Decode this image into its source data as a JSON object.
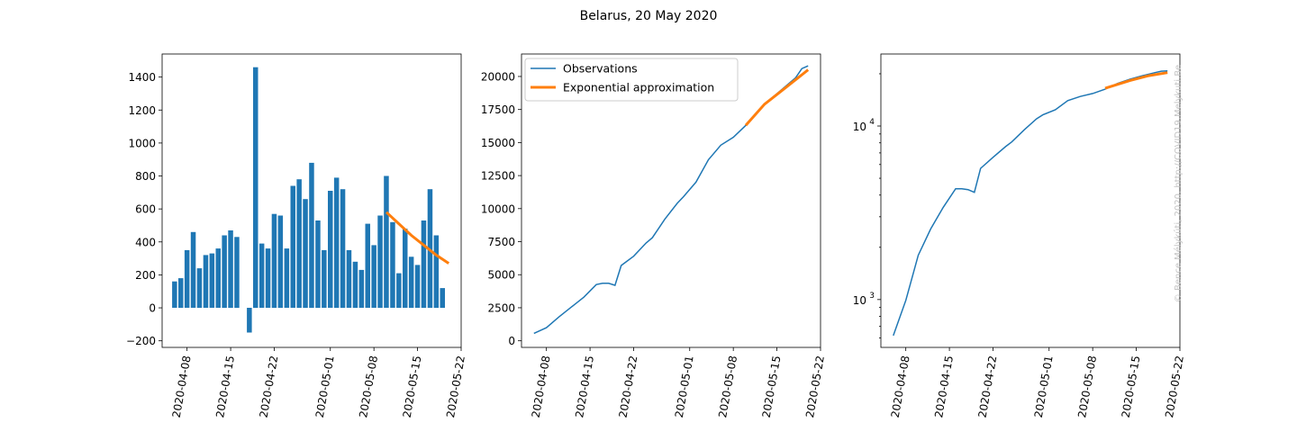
{
  "title": "Belarus, 20 May 2020",
  "watermark": "© Bence Mélykúti, 2020. http://COVID19.Melykuti.Be",
  "legend": {
    "observations": "Observations",
    "fit": "Exponential approximation"
  },
  "colors": {
    "observations": "#1f77b4",
    "fit": "#ff7f0e"
  },
  "chart_data": [
    {
      "type": "bar",
      "x_start": "2020-04-06",
      "x_end": "2020-05-20",
      "xlim": [
        "2020-04-04",
        "2020-05-22"
      ],
      "xticks": [
        "2020-04-08",
        "2020-04-15",
        "2020-04-22",
        "2020-05-01",
        "2020-05-08",
        "2020-05-15",
        "2020-05-22"
      ],
      "ylim": [
        -240,
        1540
      ],
      "yticks": [
        -200,
        0,
        200,
        400,
        600,
        800,
        1000,
        1200,
        1400
      ],
      "values": [
        160,
        180,
        350,
        460,
        240,
        320,
        330,
        360,
        440,
        470,
        430,
        0,
        -150,
        1460,
        390,
        360,
        570,
        560,
        360,
        740,
        780,
        660,
        880,
        530,
        350,
        710,
        790,
        720,
        350,
        280,
        230,
        510,
        380,
        560,
        800,
        520,
        210,
        480,
        310,
        260,
        530,
        720,
        440,
        120
      ],
      "fit": {
        "x": [
          "2020-05-10",
          "2020-05-12",
          "2020-05-14",
          "2020-05-16",
          "2020-05-18",
          "2020-05-20"
        ],
        "values": [
          580,
          510,
          440,
          380,
          320,
          270
        ]
      }
    },
    {
      "type": "line",
      "series_name": "Observations",
      "x": [
        "2020-04-06",
        "2020-04-08",
        "2020-04-10",
        "2020-04-12",
        "2020-04-14",
        "2020-04-16",
        "2020-04-17",
        "2020-04-18",
        "2020-04-19",
        "2020-04-20",
        "2020-04-22",
        "2020-04-24",
        "2020-04-25",
        "2020-04-27",
        "2020-04-29",
        "2020-04-30",
        "2020-05-02",
        "2020-05-04",
        "2020-05-06",
        "2020-05-08",
        "2020-05-10",
        "2020-05-12",
        "2020-05-14",
        "2020-05-16",
        "2020-05-18",
        "2020-05-19",
        "2020-05-20"
      ],
      "y": [
        560,
        990,
        1800,
        2550,
        3300,
        4250,
        4350,
        4350,
        4200,
        5700,
        6400,
        7400,
        7800,
        9200,
        10400,
        10900,
        12000,
        13700,
        14800,
        15400,
        16300,
        17400,
        18300,
        19100,
        19900,
        20600,
        20800
      ],
      "xlim": [
        "2020-04-04",
        "2020-05-22"
      ],
      "xticks": [
        "2020-04-08",
        "2020-04-15",
        "2020-04-22",
        "2020-05-01",
        "2020-05-08",
        "2020-05-15",
        "2020-05-22"
      ],
      "ylim": [
        -500,
        21700
      ],
      "yticks": [
        0,
        2500,
        5000,
        7500,
        10000,
        12500,
        15000,
        17500,
        20000
      ],
      "fit": {
        "x": [
          "2020-05-10",
          "2020-05-13",
          "2020-05-16",
          "2020-05-20"
        ],
        "y": [
          16300,
          17900,
          19000,
          20500
        ]
      },
      "legend_position": "upper-left"
    },
    {
      "type": "line",
      "yscale": "log",
      "x": [
        "2020-04-06",
        "2020-04-08",
        "2020-04-10",
        "2020-04-12",
        "2020-04-14",
        "2020-04-16",
        "2020-04-17",
        "2020-04-18",
        "2020-04-19",
        "2020-04-20",
        "2020-04-22",
        "2020-04-24",
        "2020-04-25",
        "2020-04-27",
        "2020-04-29",
        "2020-04-30",
        "2020-05-02",
        "2020-05-04",
        "2020-05-06",
        "2020-05-08",
        "2020-05-10",
        "2020-05-12",
        "2020-05-14",
        "2020-05-16",
        "2020-05-18",
        "2020-05-19",
        "2020-05-20"
      ],
      "y": [
        620,
        990,
        1800,
        2550,
        3400,
        4350,
        4350,
        4300,
        4150,
        5700,
        6600,
        7600,
        8100,
        9500,
        11000,
        11600,
        12400,
        14000,
        14800,
        15400,
        16300,
        17600,
        18600,
        19500,
        20300,
        20700,
        20800
      ],
      "xlim": [
        "2020-04-04",
        "2020-05-22"
      ],
      "xticks": [
        "2020-04-08",
        "2020-04-15",
        "2020-04-22",
        "2020-05-01",
        "2020-05-08",
        "2020-05-15",
        "2020-05-22"
      ],
      "ylim": [
        530,
        26000
      ],
      "yticks_major": [
        {
          "value": 1000,
          "label": "10",
          "exp": "3"
        },
        {
          "value": 10000,
          "label": "10",
          "exp": "4"
        }
      ],
      "fit": {
        "x": [
          "2020-05-10",
          "2020-05-14",
          "2020-05-17",
          "2020-05-20"
        ],
        "y": [
          16500,
          18300,
          19500,
          20300
        ]
      }
    }
  ]
}
